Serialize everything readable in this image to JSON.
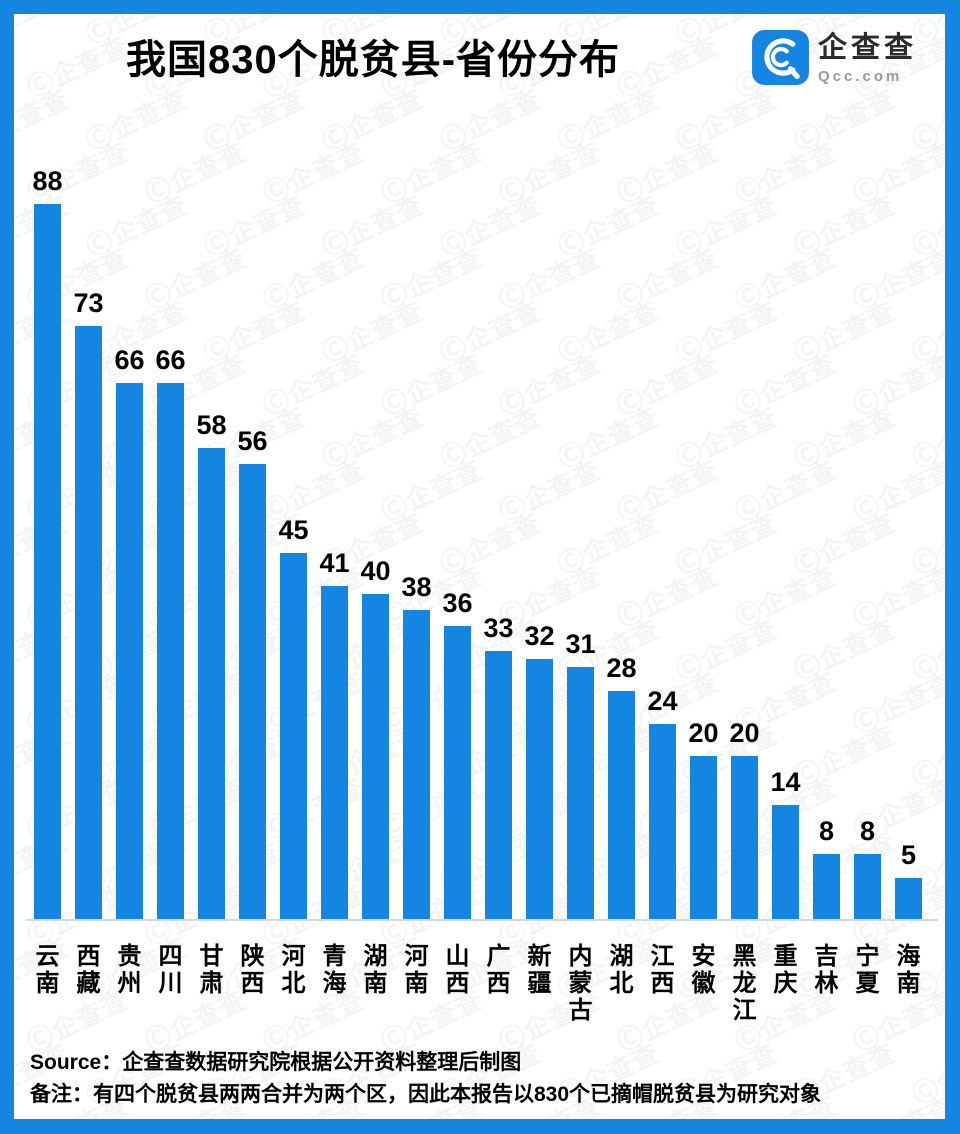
{
  "header": {
    "title": "我国830个脱贫县-省份分布",
    "logo": {
      "name": "企查查",
      "domain": "Qcc.com"
    }
  },
  "chart_data": {
    "type": "bar",
    "title": "我国830个脱贫县-省份分布",
    "categories": [
      "云南",
      "西藏",
      "贵州",
      "四川",
      "甘肃",
      "陕西",
      "河北",
      "青海",
      "湖南",
      "河南",
      "山西",
      "广西",
      "新疆",
      "内蒙古",
      "湖北",
      "江西",
      "安徽",
      "黑龙江",
      "重庆",
      "吉林",
      "宁夏",
      "海南"
    ],
    "values": [
      88,
      73,
      66,
      66,
      58,
      56,
      45,
      41,
      40,
      38,
      36,
      33,
      32,
      31,
      28,
      24,
      20,
      20,
      14,
      8,
      8,
      5
    ],
    "total": 830,
    "bar_color": "#1585E2",
    "value_labels_shown": true,
    "xlabel": "",
    "ylabel": "",
    "ylim": [
      0,
      88
    ],
    "grid": false,
    "legend": "none"
  },
  "footer": {
    "source": "Source：企查查数据研究院根据公开资料整理后制图",
    "note": "备注：有四个脱贫县两两合并为两个区，因此本报告以830个已摘帽脱贫县为研究对象"
  },
  "watermark": {
    "text": "企查查",
    "icon": "qcc-logo-icon"
  },
  "colors": {
    "accent": "#1585E2",
    "axis": "#d8d8d8",
    "text": "#000000",
    "domain_gray": "#9a9a9a"
  }
}
